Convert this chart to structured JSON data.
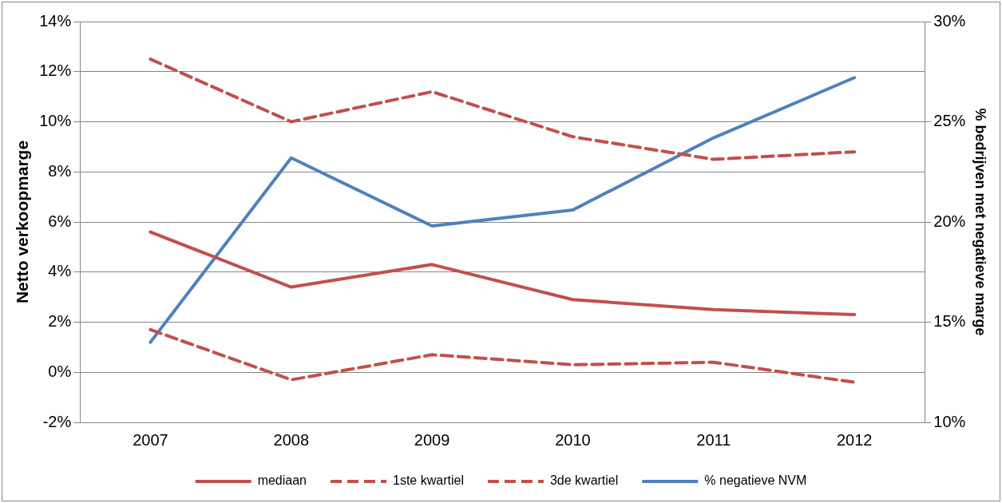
{
  "chart_data": {
    "type": "line",
    "categories": [
      "2007",
      "2008",
      "2009",
      "2010",
      "2011",
      "2012"
    ],
    "ylabel": "Netto verkoopmarge",
    "y2label": "% bedrijven met negatieve marge",
    "ylim": [
      -2,
      14
    ],
    "yticks": [
      {
        "value": -2,
        "label": "-2%"
      },
      {
        "value": 0,
        "label": "0%"
      },
      {
        "value": 2,
        "label": "2%"
      },
      {
        "value": 4,
        "label": "4%"
      },
      {
        "value": 6,
        "label": "6%"
      },
      {
        "value": 8,
        "label": "8%"
      },
      {
        "value": 10,
        "label": "10%"
      },
      {
        "value": 12,
        "label": "12%"
      },
      {
        "value": 14,
        "label": "14%"
      }
    ],
    "y2lim": [
      10,
      30
    ],
    "y2ticks": [
      {
        "value": 10,
        "label": "10%"
      },
      {
        "value": 15,
        "label": "15%"
      },
      {
        "value": 20,
        "label": "20%"
      },
      {
        "value": 25,
        "label": "25%"
      },
      {
        "value": 30,
        "label": "30%"
      }
    ],
    "grid": "y",
    "legend": "bottom",
    "marker": "none",
    "series": [
      {
        "name": "mediaan",
        "color": "#c0504d",
        "line_style": "solid",
        "values": [
          5.6,
          3.4,
          4.3,
          2.9,
          2.5,
          2.3
        ]
      },
      {
        "name": "1ste kwartiel",
        "color": "#c0504d",
        "line_style": "dashed",
        "values": [
          1.7,
          -0.3,
          0.7,
          0.3,
          0.4,
          -0.4
        ]
      },
      {
        "name": "3de kwartiel",
        "color": "#c0504d",
        "line_style": "dashed",
        "values": [
          12.5,
          10.0,
          11.2,
          9.4,
          8.5,
          8.8
        ]
      },
      {
        "name": "% negatieve NVM",
        "color": "#4f81bd",
        "line_style": "solid",
        "axis": "y2",
        "values": [
          14.0,
          23.2,
          19.8,
          20.6,
          24.2,
          27.2
        ]
      }
    ]
  }
}
